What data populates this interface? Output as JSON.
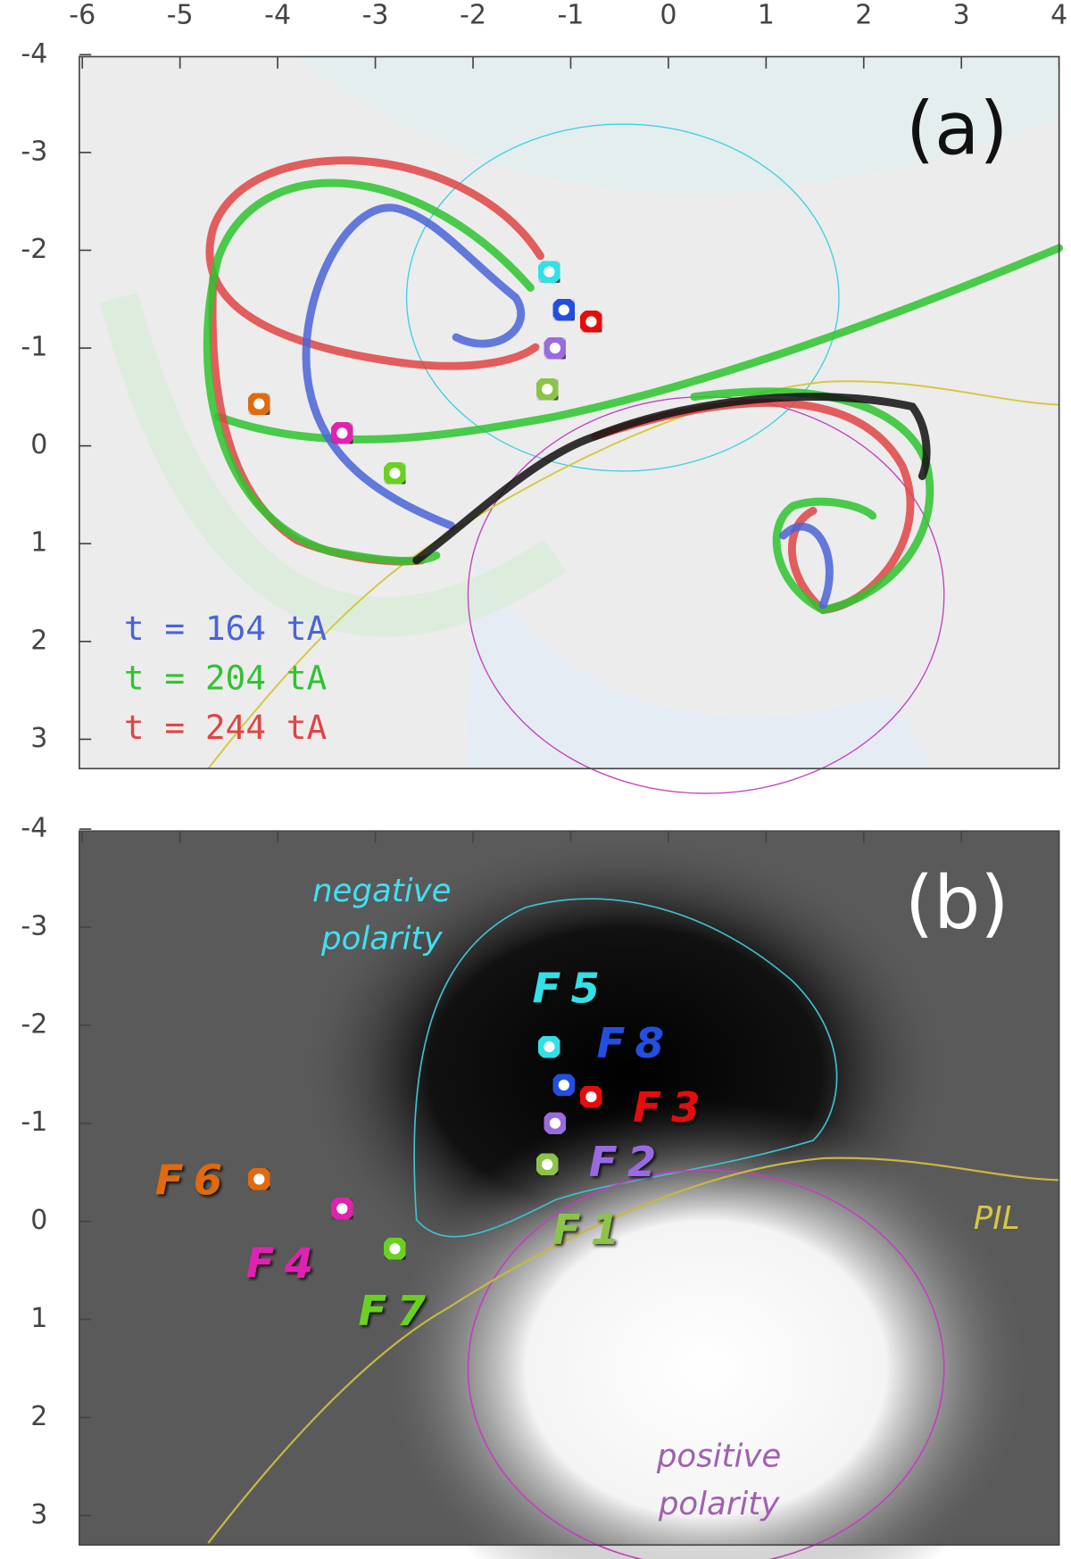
{
  "chart_data": [
    {
      "type": "map",
      "panel_label": "(a)",
      "xlim": [
        -6,
        4
      ],
      "ylim": [
        -4,
        3.3
      ],
      "xticks": [
        -6,
        -5,
        -4,
        -3,
        -2,
        -1,
        0,
        1,
        2,
        3,
        4
      ],
      "yticks": [
        -4,
        -3,
        -2,
        -1,
        0,
        1,
        2,
        3
      ],
      "legend": [
        {
          "label": "t = 164 tA",
          "color": "#4a64d8"
        },
        {
          "label": "t = 204 tA",
          "color": "#2ec42e"
        },
        {
          "label": "t = 244 tA",
          "color": "#e04444"
        }
      ]
    },
    {
      "type": "scatter",
      "panel_label": "(b)",
      "xlim": [
        -6,
        4
      ],
      "ylim": [
        -4,
        3.3
      ],
      "xticks": [
        -6,
        -5,
        -4,
        -3,
        -2,
        -1,
        0,
        1,
        2,
        3,
        4
      ],
      "yticks": [
        -4,
        -3,
        -2,
        -1,
        0,
        1,
        2,
        3
      ],
      "series": [
        {
          "name": "F1",
          "color": "#8cc34a",
          "x": [
            -1.24
          ],
          "y": [
            -0.58
          ]
        },
        {
          "name": "F2",
          "color": "#9a6be0",
          "x": [
            -1.16
          ],
          "y": [
            -1.0
          ]
        },
        {
          "name": "F3",
          "color": "#e41010",
          "x": [
            -0.79
          ],
          "y": [
            -1.27
          ]
        },
        {
          "name": "F4",
          "color": "#e020b0",
          "x": [
            -3.34
          ],
          "y": [
            -0.13
          ]
        },
        {
          "name": "F5",
          "color": "#30e0e8",
          "x": [
            -1.22
          ],
          "y": [
            -1.78
          ]
        },
        {
          "name": "F6",
          "color": "#e06a10",
          "x": [
            -4.19
          ],
          "y": [
            -0.43
          ]
        },
        {
          "name": "F7",
          "color": "#6ad020",
          "x": [
            -2.8
          ],
          "y": [
            0.28
          ]
        },
        {
          "name": "F8",
          "color": "#2050e0",
          "x": [
            -1.07
          ],
          "y": [
            -1.39
          ]
        }
      ],
      "annotations": {
        "negative": [
          "negative",
          "polarity"
        ],
        "positive": [
          "positive",
          "polarity"
        ],
        "pil": "PIL"
      }
    }
  ]
}
